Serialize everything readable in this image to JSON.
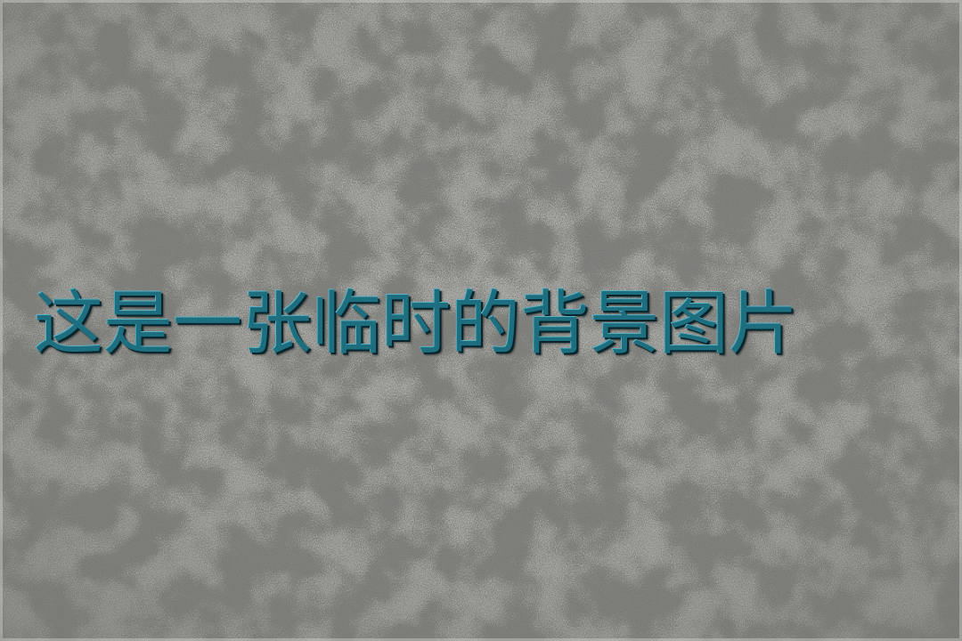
{
  "background": {
    "base_color": "#a7a7a3",
    "texture": "speckled-stone"
  },
  "headline": {
    "text": "这是一张临时的背景图片",
    "color": "#1d6f80"
  }
}
